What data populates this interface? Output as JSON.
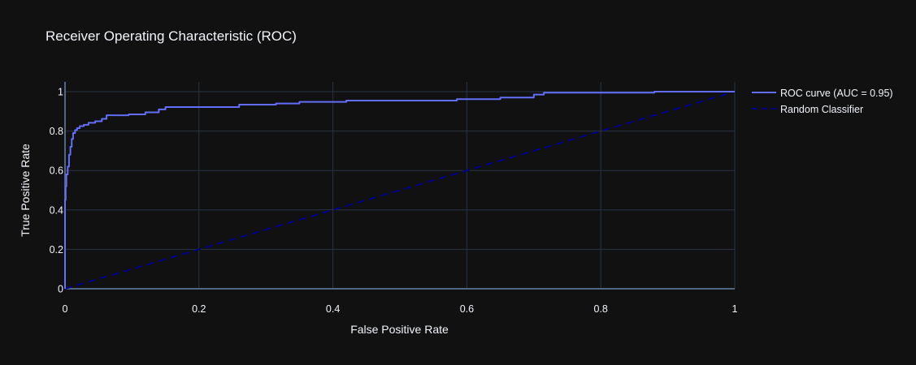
{
  "colors": {
    "background": "#111111",
    "grid": "#283442",
    "zeroline": "#506784",
    "text": "#f2f5fa",
    "roc": "#636efa",
    "random": "#00008b"
  },
  "chart_data": {
    "type": "line",
    "title": "Receiver Operating Characteristic (ROC)",
    "xlabel": "False Positive Rate",
    "ylabel": "True Positive Rate",
    "xlim": [
      0,
      1
    ],
    "ylim": [
      0,
      1.05
    ],
    "grid": true,
    "legend_position": "top-right",
    "x_ticks": [
      "0",
      "0.2",
      "0.4",
      "0.6",
      "0.8",
      "1"
    ],
    "y_ticks": [
      "0",
      "0.2",
      "0.4",
      "0.6",
      "0.8",
      "1"
    ],
    "series": [
      {
        "name": "ROC curve (AUC = 0.95)",
        "line": "solid",
        "color": "#636efa",
        "x": [
          0,
          0,
          0.001,
          0.001,
          0.002,
          0.002,
          0.004,
          0.004,
          0.006,
          0.006,
          0.008,
          0.008,
          0.01,
          0.01,
          0.012,
          0.012,
          0.015,
          0.015,
          0.018,
          0.018,
          0.022,
          0.022,
          0.028,
          0.028,
          0.035,
          0.035,
          0.045,
          0.045,
          0.055,
          0.055,
          0.062,
          0.062,
          0.095,
          0.095,
          0.12,
          0.12,
          0.14,
          0.14,
          0.15,
          0.15,
          0.26,
          0.26,
          0.315,
          0.315,
          0.35,
          0.35,
          0.42,
          0.42,
          0.585,
          0.585,
          0.65,
          0.65,
          0.7,
          0.7,
          0.715,
          0.715,
          0.88,
          0.88,
          1.0
        ],
        "y": [
          0,
          0.45,
          0.45,
          0.52,
          0.52,
          0.58,
          0.58,
          0.62,
          0.62,
          0.68,
          0.68,
          0.72,
          0.72,
          0.76,
          0.76,
          0.79,
          0.79,
          0.805,
          0.805,
          0.815,
          0.815,
          0.825,
          0.825,
          0.832,
          0.832,
          0.842,
          0.842,
          0.85,
          0.85,
          0.862,
          0.862,
          0.88,
          0.88,
          0.885,
          0.885,
          0.895,
          0.895,
          0.91,
          0.91,
          0.922,
          0.922,
          0.934,
          0.934,
          0.94,
          0.94,
          0.948,
          0.948,
          0.955,
          0.955,
          0.962,
          0.962,
          0.97,
          0.97,
          0.985,
          0.985,
          0.995,
          0.995,
          1.0,
          1.0
        ]
      },
      {
        "name": "Random Classifier",
        "line": "dash",
        "color": "#00008b",
        "x": [
          0,
          1
        ],
        "y": [
          0,
          1
        ]
      }
    ]
  }
}
